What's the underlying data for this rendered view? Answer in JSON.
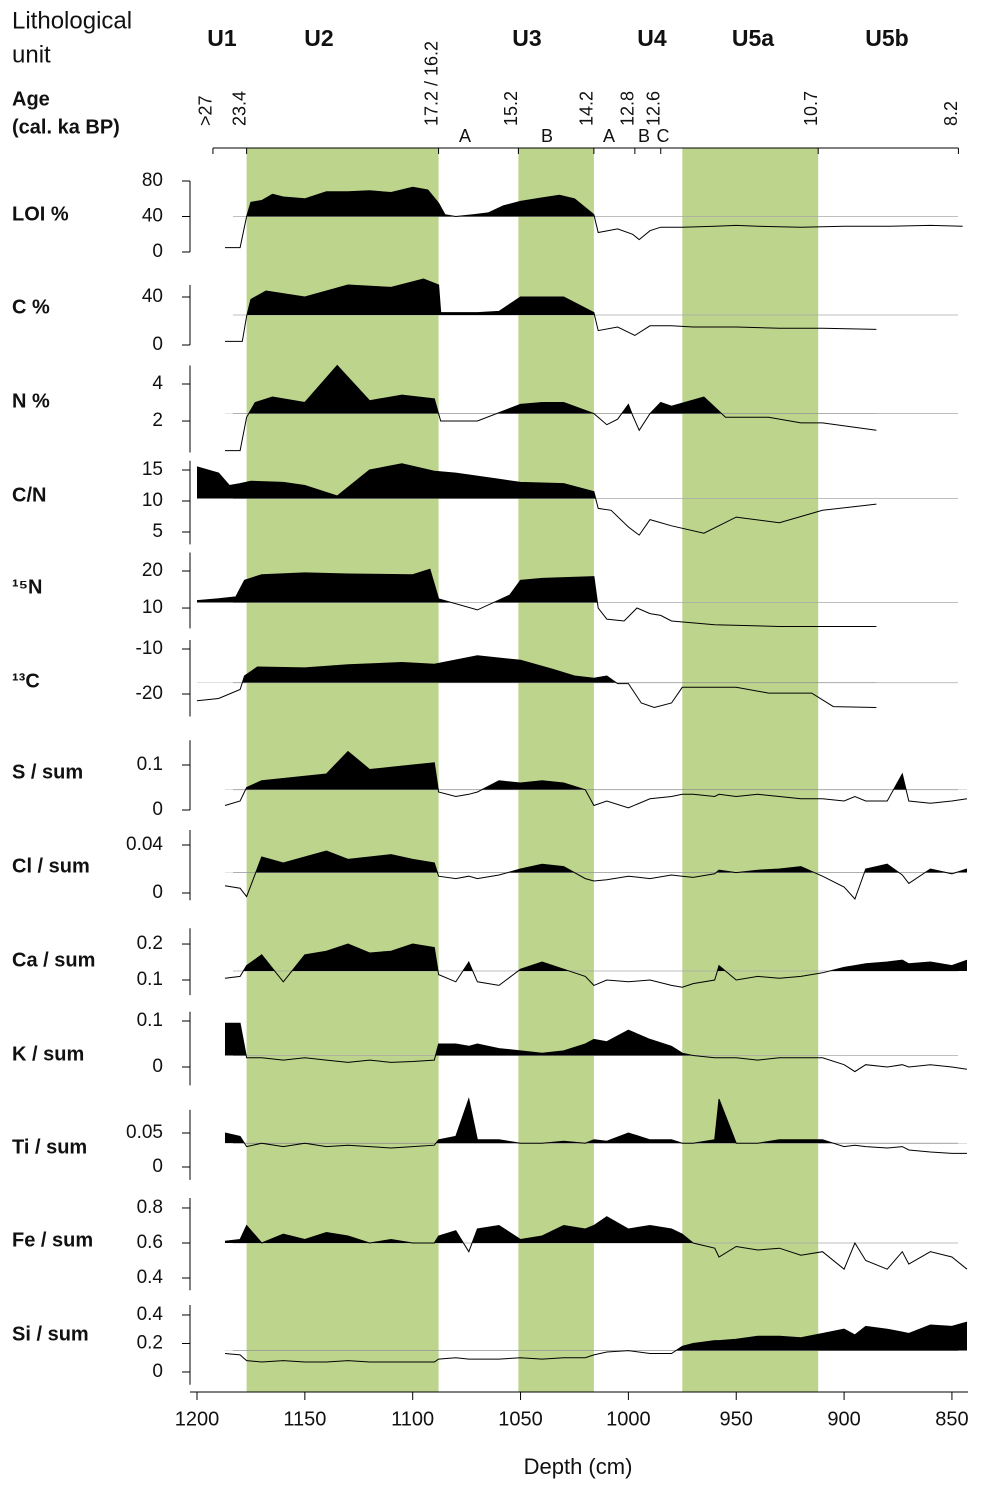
{
  "header": {
    "lith_label_1": "Lithological",
    "lith_label_2": "unit",
    "age_label_1": "Age",
    "age_label_2": "(cal. ka BP)",
    "units": [
      "U1",
      "U2",
      "U3",
      "U4",
      "U5a",
      "U5b"
    ],
    "age_labels": [
      ">27",
      "23.4",
      "17.2 / 16.2",
      "15.2",
      "14.2",
      "12.8",
      "12.6",
      "10.7",
      "8.2"
    ],
    "age_depths": [
      1192.6,
      1177,
      1088,
      1051,
      1016,
      997,
      985,
      912,
      847
    ],
    "subunits": [
      "A",
      "B",
      "A",
      "B",
      "C"
    ],
    "shaded_depths": [
      [
        1177,
        1088
      ],
      [
        1051,
        1016
      ],
      [
        975,
        912
      ]
    ],
    "shade_color": "#bcd48b"
  },
  "depth_axis": {
    "label": "Depth (cm)",
    "xlim": [
      1200,
      840
    ],
    "xticks": [
      1200,
      1150,
      1100,
      1050,
      1000,
      950,
      900,
      850
    ]
  },
  "chart_data": [
    {
      "type": "area",
      "title": "LOI %",
      "color": "#000000",
      "baseline": 40,
      "ylim": [
        0,
        80
      ],
      "yticks": [
        0,
        40,
        80
      ],
      "x": [
        1187,
        1180,
        1177,
        1175,
        1170,
        1165,
        1160,
        1150,
        1140,
        1130,
        1120,
        1110,
        1100,
        1093,
        1088,
        1085,
        1080,
        1072,
        1065,
        1058,
        1050,
        1040,
        1032,
        1025,
        1016,
        1014,
        1005,
        998,
        995,
        990,
        985,
        975,
        960,
        950,
        940,
        920,
        900,
        880,
        860,
        845
      ],
      "values": [
        5,
        5,
        40,
        56,
        58,
        65,
        62,
        60,
        68,
        68,
        69,
        67,
        73,
        70,
        55,
        42,
        40,
        42,
        44,
        52,
        57,
        61,
        64,
        60,
        42,
        22,
        26,
        20,
        14,
        24,
        28,
        28,
        29,
        30,
        29,
        28,
        29,
        29,
        30,
        29
      ]
    },
    {
      "type": "area",
      "title": "C %",
      "color": "#000000",
      "baseline": 25,
      "ylim": [
        0,
        50
      ],
      "yticks": [
        0,
        40
      ],
      "x": [
        1187,
        1179,
        1177,
        1175,
        1168,
        1150,
        1130,
        1110,
        1095,
        1088,
        1087,
        1070,
        1060,
        1050,
        1030,
        1016,
        1014,
        1005,
        997,
        990,
        980,
        970,
        950,
        930,
        910,
        885
      ],
      "values": [
        3,
        3,
        24,
        38,
        45,
        40,
        50,
        48,
        55,
        50,
        27,
        27,
        28,
        40,
        40,
        27,
        12,
        15,
        8,
        16,
        16,
        15,
        15,
        14,
        14,
        13
      ]
    },
    {
      "type": "area",
      "title": "N %",
      "color": "#000000",
      "baseline": 2.4,
      "ylim": [
        0.3,
        5
      ],
      "yticks": [
        2,
        4
      ],
      "x": [
        1187,
        1180,
        1177,
        1173,
        1165,
        1150,
        1135,
        1120,
        1105,
        1090,
        1087,
        1070,
        1050,
        1040,
        1030,
        1016,
        1010,
        1005,
        1000,
        998,
        995,
        990,
        985,
        980,
        965,
        955,
        935,
        920,
        910,
        885
      ],
      "values": [
        0.4,
        0.4,
        2.2,
        3.0,
        3.3,
        3.0,
        5.0,
        3.1,
        3.4,
        3.2,
        2.0,
        2.0,
        2.9,
        3.0,
        3.0,
        2.4,
        1.8,
        2.1,
        2.9,
        2.3,
        1.5,
        2.4,
        3.0,
        2.8,
        3.3,
        2.2,
        2.2,
        1.9,
        1.9,
        1.5
      ]
    },
    {
      "type": "area",
      "title": "C/N",
      "color": "#000000",
      "baseline": 10.4,
      "ylim": [
        3,
        16.5
      ],
      "yticks": [
        5,
        10,
        15
      ],
      "x": [
        1200,
        1190,
        1185,
        1180,
        1175,
        1160,
        1150,
        1135,
        1120,
        1105,
        1090,
        1080,
        1060,
        1050,
        1030,
        1016,
        1014,
        1008,
        1000,
        995,
        990,
        980,
        965,
        950,
        930,
        910,
        885
      ],
      "values": [
        15.5,
        14.5,
        12.5,
        12.8,
        13.2,
        13,
        12.5,
        10.8,
        15,
        16,
        14.8,
        14.5,
        13.5,
        13,
        12.8,
        11.5,
        8.8,
        8.5,
        5.8,
        4.5,
        7,
        6,
        4.8,
        7.4,
        6.5,
        8.5,
        9.5
      ]
    },
    {
      "type": "area",
      "title": "¹⁵N",
      "color": "#000000",
      "baseline": 11.5,
      "ylim": [
        4.5,
        25
      ],
      "yticks": [
        10,
        20
      ],
      "x": [
        1200,
        1190,
        1182,
        1178,
        1170,
        1150,
        1130,
        1100,
        1092,
        1088,
        1070,
        1055,
        1050,
        1040,
        1016,
        1014,
        1010,
        1002,
        996,
        990,
        985,
        980,
        960,
        930,
        910,
        885
      ],
      "values": [
        12,
        12.5,
        13,
        17.5,
        19,
        19.5,
        19.2,
        19,
        20.5,
        12.5,
        9.5,
        13.5,
        17.5,
        18,
        18.5,
        10,
        7,
        6.5,
        10,
        8.5,
        8,
        6.5,
        5.5,
        5,
        5,
        5
      ]
    },
    {
      "type": "area",
      "title": "¹³C",
      "color": "#000000",
      "baseline": -17.5,
      "ylim": [
        -25,
        -8
      ],
      "yticks": [
        -20,
        -10
      ],
      "x": [
        1200,
        1190,
        1180,
        1178,
        1172,
        1150,
        1130,
        1105,
        1090,
        1070,
        1050,
        1035,
        1025,
        1016,
        1010,
        1005,
        1000,
        994,
        988,
        980,
        975,
        950,
        935,
        915,
        905,
        885
      ],
      "values": [
        -21.5,
        -21,
        -19,
        -16,
        -14,
        -14.2,
        -13.5,
        -13,
        -13.4,
        -11.5,
        -12.5,
        -14.5,
        -16,
        -16.5,
        -16,
        -17.7,
        -17.7,
        -22,
        -23,
        -22,
        -18.5,
        -18.5,
        -19.8,
        -19.8,
        -22.8,
        -23
      ]
    },
    {
      "type": "area",
      "title": "S / sum",
      "color": "#000000",
      "baseline": 0.045,
      "ylim": [
        0,
        0.155
      ],
      "yticks": [
        0,
        0.1
      ],
      "x": [
        1187,
        1180,
        1177,
        1170,
        1160,
        1150,
        1140,
        1130,
        1120,
        1110,
        1100,
        1090,
        1088,
        1080,
        1074,
        1070,
        1060,
        1050,
        1040,
        1030,
        1020,
        1016,
        1010,
        1000,
        990,
        980,
        975,
        970,
        960,
        958,
        950,
        940,
        930,
        920,
        910,
        900,
        895,
        890,
        880,
        873,
        870,
        860,
        850,
        843
      ],
      "values": [
        0.01,
        0.02,
        0.05,
        0.065,
        0.07,
        0.075,
        0.08,
        0.13,
        0.09,
        0.095,
        0.1,
        0.105,
        0.04,
        0.03,
        0.035,
        0.04,
        0.065,
        0.06,
        0.065,
        0.06,
        0.045,
        0.01,
        0.02,
        0.005,
        0.025,
        0.03,
        0.035,
        0.035,
        0.03,
        0.035,
        0.03,
        0.035,
        0.03,
        0.025,
        0.025,
        0.02,
        0.03,
        0.02,
        0.02,
        0.08,
        0.02,
        0.015,
        0.02,
        0.025
      ]
    },
    {
      "type": "area",
      "title": "Cl / sum",
      "color": "#000000",
      "baseline": 0.017,
      "ylim": [
        -0.006,
        0.0525
      ],
      "yticks": [
        0,
        0.04
      ],
      "x": [
        1187,
        1180,
        1177,
        1170,
        1160,
        1150,
        1140,
        1130,
        1120,
        1110,
        1100,
        1090,
        1088,
        1080,
        1074,
        1070,
        1060,
        1050,
        1040,
        1030,
        1020,
        1016,
        1010,
        1000,
        990,
        980,
        975,
        970,
        960,
        958,
        950,
        940,
        930,
        920,
        910,
        900,
        895,
        890,
        880,
        873,
        870,
        860,
        850,
        843
      ],
      "values": [
        0.006,
        0.004,
        -0.003,
        0.03,
        0.025,
        0.03,
        0.035,
        0.028,
        0.03,
        0.032,
        0.028,
        0.025,
        0.014,
        0.012,
        0.014,
        0.012,
        0.015,
        0.02,
        0.024,
        0.022,
        0.012,
        0.01,
        0.011,
        0.014,
        0.012,
        0.015,
        0.014,
        0.013,
        0.016,
        0.019,
        0.017,
        0.019,
        0.02,
        0.022,
        0.014,
        0.005,
        -0.005,
        0.02,
        0.024,
        0.015,
        0.008,
        0.02,
        0.016,
        0.02
      ]
    },
    {
      "type": "area",
      "title": "Ca / sum",
      "color": "#000000",
      "baseline": 0.125,
      "ylim": [
        0.058,
        0.244
      ],
      "yticks": [
        0.1,
        0.2
      ],
      "x": [
        1187,
        1180,
        1177,
        1170,
        1160,
        1150,
        1140,
        1130,
        1120,
        1110,
        1100,
        1090,
        1088,
        1080,
        1074,
        1070,
        1060,
        1050,
        1040,
        1030,
        1020,
        1016,
        1010,
        1000,
        990,
        980,
        975,
        970,
        960,
        958,
        950,
        940,
        930,
        920,
        910,
        900,
        895,
        890,
        880,
        873,
        870,
        860,
        850,
        843
      ],
      "values": [
        0.105,
        0.11,
        0.14,
        0.17,
        0.095,
        0.17,
        0.18,
        0.2,
        0.175,
        0.18,
        0.2,
        0.19,
        0.115,
        0.095,
        0.15,
        0.095,
        0.085,
        0.13,
        0.15,
        0.13,
        0.11,
        0.085,
        0.1,
        0.095,
        0.1,
        0.085,
        0.08,
        0.09,
        0.1,
        0.14,
        0.1,
        0.11,
        0.105,
        0.11,
        0.12,
        0.135,
        0.14,
        0.145,
        0.15,
        0.155,
        0.145,
        0.15,
        0.14,
        0.155
      ]
    },
    {
      "type": "area",
      "title": "K / sum",
      "color": "#000000",
      "baseline": 0.025,
      "ylim": [
        -0.04,
        0.12
      ],
      "yticks": [
        0,
        0.1
      ],
      "x": [
        1187,
        1180,
        1177,
        1170,
        1160,
        1150,
        1140,
        1130,
        1120,
        1110,
        1100,
        1090,
        1088,
        1080,
        1074,
        1070,
        1060,
        1050,
        1040,
        1030,
        1020,
        1016,
        1010,
        1000,
        990,
        980,
        975,
        970,
        960,
        958,
        950,
        940,
        930,
        920,
        910,
        900,
        895,
        890,
        880,
        873,
        870,
        860,
        850,
        843
      ],
      "values": [
        0.095,
        0.095,
        0.02,
        0.02,
        0.015,
        0.02,
        0.015,
        0.01,
        0.015,
        0.01,
        0.012,
        0.015,
        0.05,
        0.05,
        0.045,
        0.05,
        0.04,
        0.035,
        0.03,
        0.035,
        0.05,
        0.06,
        0.055,
        0.08,
        0.06,
        0.045,
        0.03,
        0.025,
        0.02,
        0.02,
        0.02,
        0.015,
        0.02,
        0.02,
        0.02,
        0.005,
        -0.01,
        0.005,
        0,
        0.005,
        0,
        0.005,
        0,
        -0.005
      ]
    },
    {
      "type": "area",
      "title": "Ti / sum",
      "color": "#000000",
      "baseline": 0.035,
      "ylim": [
        -0.019,
        0.084
      ],
      "yticks": [
        0,
        0.05
      ],
      "x": [
        1187,
        1180,
        1177,
        1170,
        1160,
        1150,
        1140,
        1130,
        1120,
        1110,
        1100,
        1090,
        1088,
        1080,
        1074,
        1070,
        1060,
        1050,
        1040,
        1030,
        1020,
        1016,
        1010,
        1000,
        990,
        980,
        975,
        970,
        960,
        958,
        950,
        940,
        930,
        920,
        910,
        900,
        895,
        890,
        880,
        873,
        870,
        860,
        850,
        843
      ],
      "values": [
        0.05,
        0.045,
        0.03,
        0.035,
        0.03,
        0.035,
        0.03,
        0.032,
        0.03,
        0.028,
        0.03,
        0.032,
        0.04,
        0.045,
        0.1,
        0.04,
        0.04,
        0.035,
        0.035,
        0.038,
        0.035,
        0.04,
        0.038,
        0.05,
        0.04,
        0.04,
        0.035,
        0.035,
        0.04,
        0.1,
        0.035,
        0.035,
        0.04,
        0.04,
        0.04,
        0.03,
        0.032,
        0.03,
        0.028,
        0.03,
        0.025,
        0.022,
        0.02,
        0.02
      ]
    },
    {
      "type": "area",
      "title": "Fe / sum",
      "color": "#000000",
      "baseline": 0.6,
      "ylim": [
        0.33,
        0.857
      ],
      "yticks": [
        0.4,
        0.6,
        0.8
      ],
      "x": [
        1187,
        1180,
        1177,
        1170,
        1160,
        1150,
        1140,
        1130,
        1120,
        1110,
        1100,
        1090,
        1088,
        1080,
        1074,
        1070,
        1060,
        1050,
        1040,
        1030,
        1020,
        1016,
        1010,
        1000,
        990,
        980,
        975,
        970,
        960,
        958,
        950,
        940,
        930,
        920,
        910,
        900,
        895,
        890,
        880,
        873,
        870,
        860,
        850,
        843
      ],
      "values": [
        0.61,
        0.62,
        0.7,
        0.6,
        0.65,
        0.62,
        0.66,
        0.64,
        0.6,
        0.62,
        0.6,
        0.6,
        0.64,
        0.67,
        0.55,
        0.68,
        0.7,
        0.62,
        0.64,
        0.7,
        0.68,
        0.7,
        0.75,
        0.68,
        0.7,
        0.68,
        0.65,
        0.6,
        0.57,
        0.52,
        0.58,
        0.56,
        0.57,
        0.53,
        0.55,
        0.45,
        0.6,
        0.5,
        0.45,
        0.55,
        0.48,
        0.55,
        0.52,
        0.45
      ]
    },
    {
      "type": "area",
      "title": "Si / sum",
      "color": "#000000",
      "baseline": 0.15,
      "ylim": [
        -0.09,
        0.47
      ],
      "yticks": [
        0,
        0.2,
        0.4
      ],
      "x": [
        1187,
        1180,
        1177,
        1170,
        1160,
        1150,
        1140,
        1130,
        1120,
        1110,
        1100,
        1090,
        1088,
        1080,
        1074,
        1070,
        1060,
        1050,
        1040,
        1030,
        1020,
        1016,
        1010,
        1000,
        990,
        980,
        975,
        970,
        960,
        958,
        950,
        940,
        930,
        920,
        910,
        900,
        895,
        890,
        880,
        873,
        870,
        860,
        850,
        843
      ],
      "values": [
        0.13,
        0.12,
        0.08,
        0.07,
        0.08,
        0.07,
        0.07,
        0.08,
        0.07,
        0.07,
        0.07,
        0.07,
        0.09,
        0.1,
        0.09,
        0.09,
        0.09,
        0.1,
        0.09,
        0.1,
        0.1,
        0.12,
        0.14,
        0.15,
        0.13,
        0.13,
        0.18,
        0.2,
        0.22,
        0.22,
        0.23,
        0.25,
        0.25,
        0.24,
        0.27,
        0.3,
        0.26,
        0.32,
        0.3,
        0.28,
        0.27,
        0.33,
        0.32,
        0.35
      ]
    }
  ]
}
